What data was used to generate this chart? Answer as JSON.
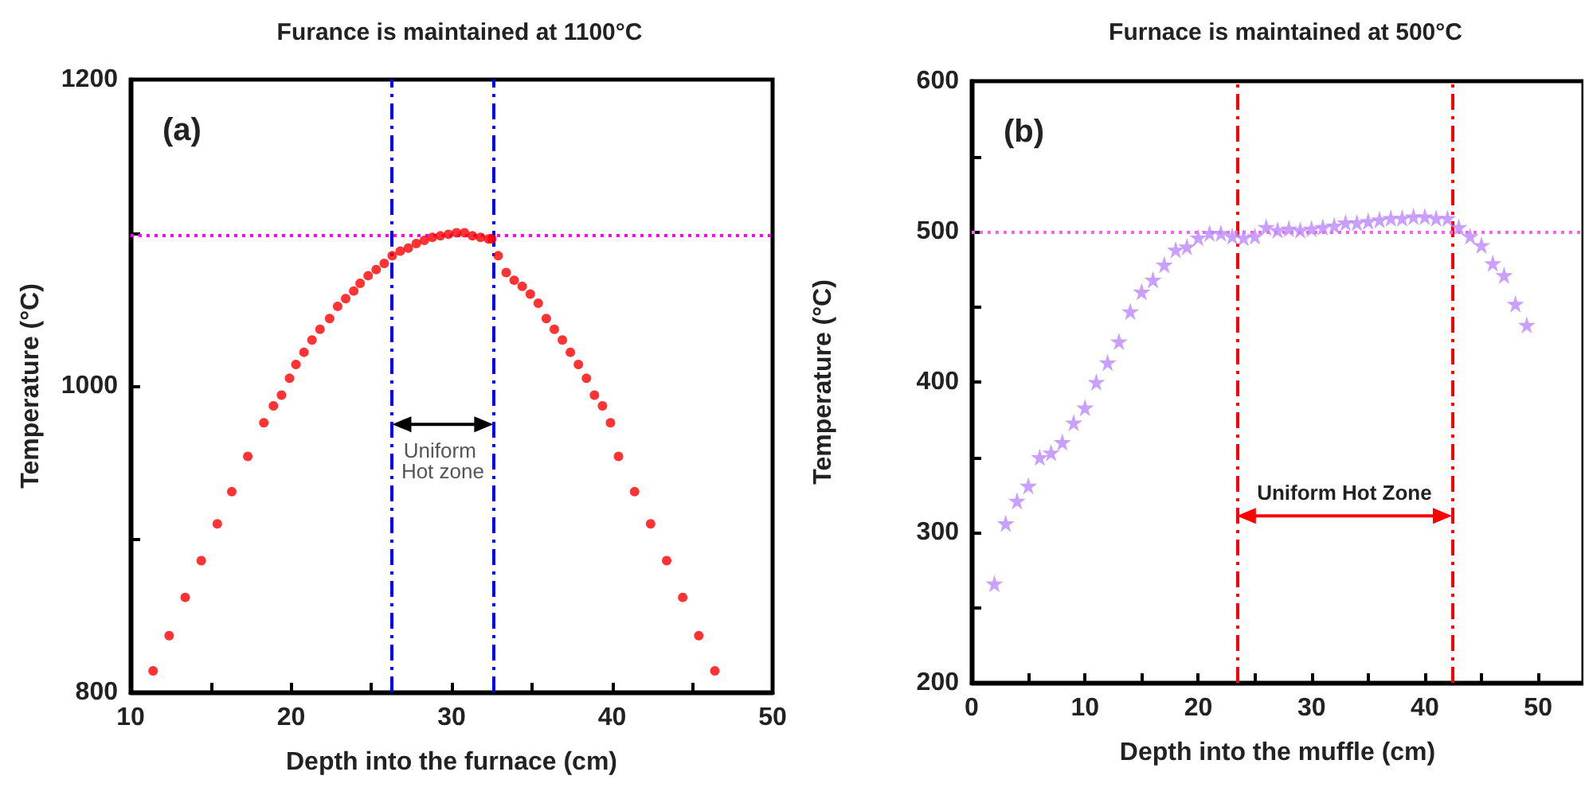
{
  "chart_data": [
    {
      "type": "scatter",
      "title": "Furance is maintained at 1100°C",
      "xlabel": "Depth into the furnace (cm)",
      "ylabel": "Temperature (°C)",
      "marker": "circle",
      "grid": false,
      "xlim": [
        10,
        50
      ],
      "xticks": [
        10,
        {
          "value": 15,
          "label": null
        },
        20,
        {
          "value": 25,
          "label": null
        },
        30,
        {
          "value": 35,
          "label": null
        },
        40,
        {
          "value": 45,
          "label": null
        },
        50
      ],
      "ylim": [
        800,
        1200
      ],
      "yticks": [
        800,
        {
          "value": 900,
          "label": null
        },
        1000,
        {
          "value": 1100,
          "label": null
        },
        1200
      ],
      "series": [
        {
          "color": "#ff0000",
          "x": [
            11.4,
            12.4,
            13.4,
            14.4,
            15.4,
            16.3,
            17.3,
            18.3,
            18.9,
            19.4,
            19.9,
            20.3,
            20.8,
            21.3,
            21.8,
            22.4,
            22.9,
            23.4,
            23.9,
            24.3,
            24.8,
            25.3,
            25.8,
            26.3,
            26.8,
            27.3,
            27.8,
            28.3,
            28.8,
            29.3,
            29.8,
            30.3,
            30.8,
            31.3,
            31.8,
            32.3,
            32.5,
            32.9,
            33.4,
            33.9,
            34.4,
            34.9,
            35.4,
            35.9,
            36.4,
            36.9,
            37.4,
            37.9,
            38.4,
            38.9,
            39.4,
            39.9,
            40.4,
            41.4,
            42.4,
            43.4,
            44.4,
            45.4,
            46.4
          ],
          "values": [
            814,
            837,
            862,
            886,
            910,
            931,
            954,
            976,
            987,
            994,
            1005,
            1014,
            1022,
            1030,
            1037,
            1044,
            1052,
            1057,
            1062,
            1067,
            1072,
            1076,
            1080,
            1085,
            1088,
            1090,
            1093,
            1095,
            1097,
            1098,
            1099,
            1100,
            1100,
            1098,
            1097,
            1096,
            1096,
            1085,
            1074,
            1069,
            1065,
            1060,
            1054,
            1044,
            1037,
            1030,
            1022,
            1014,
            1005,
            994,
            987,
            976,
            954,
            931,
            910,
            886,
            862,
            837,
            814
          ]
        }
      ],
      "ref_lines": [
        {
          "axis": "x",
          "value": 26.3,
          "color": "#0000ff",
          "line_style": "dashed"
        },
        {
          "axis": "x",
          "value": 32.6,
          "color": "#0000ff",
          "line_style": "dashed"
        },
        {
          "axis": "y",
          "value": 1098,
          "color": "#ff00ff",
          "line_style": "dotted"
        }
      ],
      "annotations": [
        "(a)",
        "Uniform Hot zone"
      ]
    },
    {
      "type": "scatter",
      "title": "Furnace is maintained at 500°C",
      "xlabel": "Depth into the muffle (cm)",
      "ylabel": "Temperature (°C)",
      "marker": "star",
      "grid": false,
      "xlim": [
        0,
        54
      ],
      "xticks": [
        0,
        {
          "value": 5,
          "label": null
        },
        10,
        {
          "value": 15,
          "label": null
        },
        20,
        {
          "value": 25,
          "label": null
        },
        30,
        {
          "value": 35,
          "label": null
        },
        40,
        {
          "value": 45,
          "label": null
        },
        50
      ],
      "ylim": [
        200,
        600
      ],
      "yticks": [
        200,
        {
          "value": 250,
          "label": null
        },
        300,
        {
          "value": 350,
          "label": null
        },
        400,
        {
          "value": 450,
          "label": null
        },
        500,
        {
          "value": 550,
          "label": null
        },
        600
      ],
      "series": [
        {
          "color": "#bb88ff",
          "x": [
            2,
            3,
            4,
            5,
            6,
            7,
            8,
            9,
            10,
            11,
            12,
            13,
            14,
            15,
            16,
            17,
            18,
            19,
            20,
            21,
            22,
            23,
            24,
            25,
            26,
            27,
            28,
            29,
            30,
            31,
            32,
            33,
            34,
            35,
            36,
            37,
            38,
            39,
            40,
            41,
            42,
            43,
            44,
            45,
            46,
            47,
            48,
            49
          ],
          "values": [
            266,
            306,
            321,
            331,
            350,
            353,
            360,
            373,
            383,
            400,
            413,
            427,
            447,
            460,
            468,
            478,
            488,
            490,
            496,
            499,
            499,
            497,
            496,
            497,
            503,
            501,
            502,
            501,
            502,
            503,
            504,
            506,
            506,
            507,
            508,
            509,
            509,
            510,
            510,
            509,
            509,
            503,
            497,
            491,
            479,
            471,
            452,
            438
          ]
        }
      ],
      "ref_lines": [
        {
          "axis": "x",
          "value": 23.4,
          "color": "#ff0000",
          "line_style": "dashed"
        },
        {
          "axis": "x",
          "value": 42.4,
          "color": "#ff0000",
          "line_style": "dashed"
        },
        {
          "axis": "y",
          "value": 500,
          "color": "#ee66ee",
          "line_style": "dotted"
        }
      ],
      "annotations": [
        "(b)",
        "Uniform Hot Zone"
      ]
    }
  ]
}
